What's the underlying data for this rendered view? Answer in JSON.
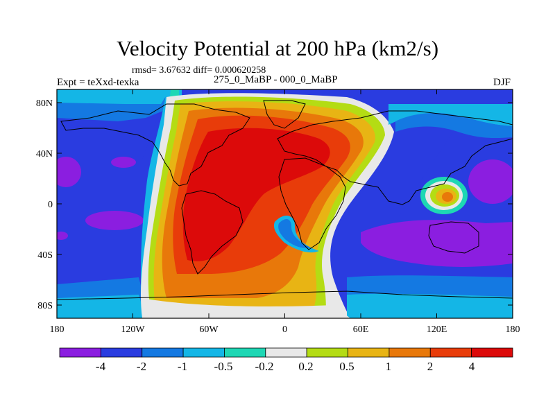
{
  "title": "Velocity Potential at 200 hPa (km2/s)",
  "stats": "rmsd= 3.67632 diff= 0.000620258",
  "left_label": "Expt = teXxd-texka",
  "center_label": "275_0_MaBP - 000_0_MaBP",
  "right_label": "DJF",
  "x_ticks": [
    "180",
    "120W",
    "60W",
    "0",
    "60E",
    "120E",
    "180"
  ],
  "y_ticks": [
    "80N",
    "40N",
    "0",
    "40S",
    "80S"
  ],
  "colorbar": {
    "labels": [
      "-4",
      "-2",
      "-1",
      "-0.5",
      "-0.2",
      "0.2",
      "0.5",
      "1",
      "2",
      "4"
    ],
    "colors": [
      "#8b1ee0",
      "#2a3ce0",
      "#1479e2",
      "#14b6e6",
      "#1ed7b4",
      "#e8e8e8",
      "#b4dc14",
      "#e8b414",
      "#e8780a",
      "#e83c0a",
      "#dc0a0a"
    ]
  },
  "palette": {
    "ocean_neg_strong": "#8b1ee0",
    "neg_large": "#2a3ce0",
    "neg_mid": "#1479e2",
    "neg_small": "#14b6e6",
    "neg_tiny": "#1ed7b4",
    "near_zero": "#e8e8e8",
    "pos_tiny": "#b4dc14",
    "pos_small": "#e8b414",
    "pos_mid": "#e8780a",
    "pos_large": "#e83c0a",
    "pos_strong": "#dc0a0a"
  }
}
